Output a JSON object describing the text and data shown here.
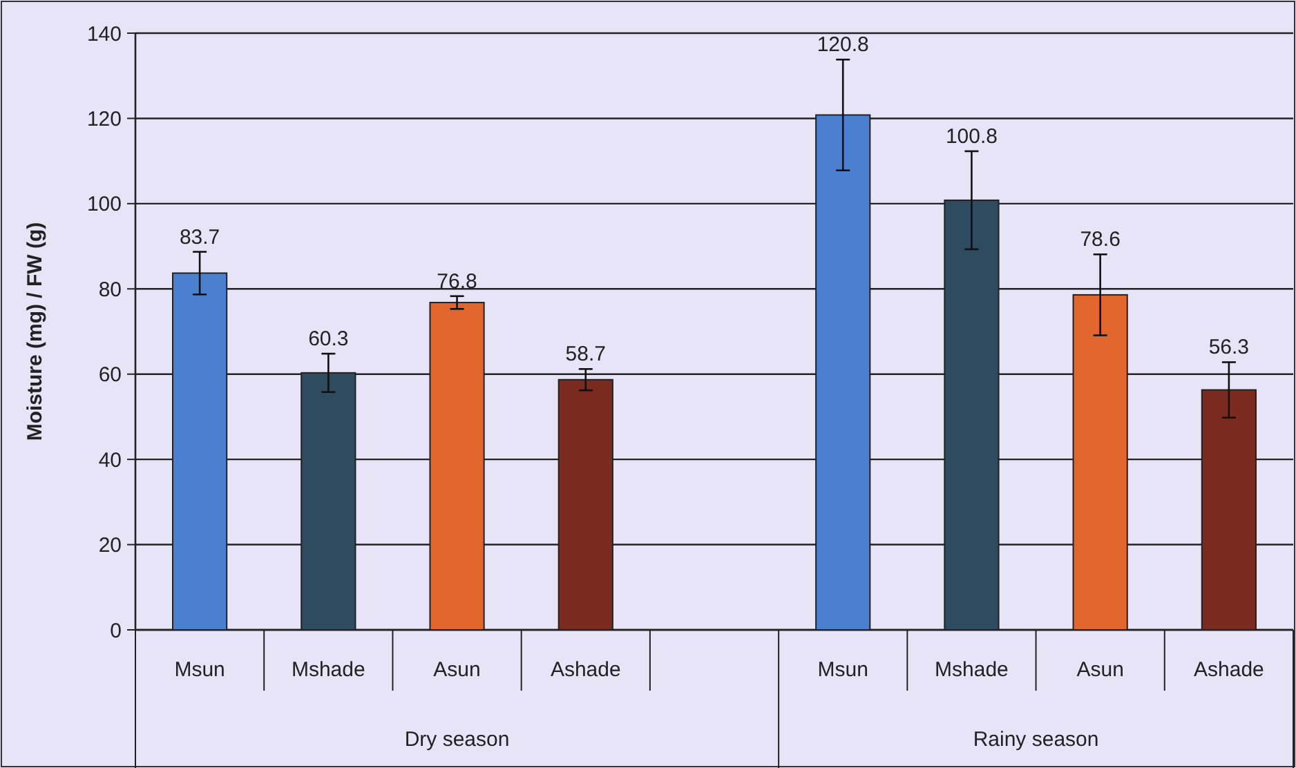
{
  "chart_data": {
    "type": "bar",
    "ylabel": "Moisture (mg) / FW (g)",
    "categories": [
      "Msun",
      "Mshade",
      "Asun",
      "Ashade",
      null,
      "Msun",
      "Mshade",
      "Asun",
      "Ashade"
    ],
    "values": [
      83.7,
      60.3,
      76.8,
      58.7,
      null,
      120.8,
      100.8,
      78.6,
      56.3
    ],
    "errors": [
      5,
      4.5,
      1.5,
      2.5,
      null,
      13,
      11.5,
      9.5,
      6.5
    ],
    "colors": [
      "#4a80cf",
      "#2e4b60",
      "#e0662e",
      "#7a2a1e",
      null,
      "#4a80cf",
      "#2e4b60",
      "#e0662e",
      "#7a2a1e"
    ],
    "data_labels": true,
    "ylim": [
      0,
      140
    ],
    "yticks": [
      0,
      20,
      40,
      60,
      80,
      100,
      120,
      140
    ],
    "grid": "y",
    "annotations": [
      "Dry season",
      "Rainy season"
    ]
  }
}
